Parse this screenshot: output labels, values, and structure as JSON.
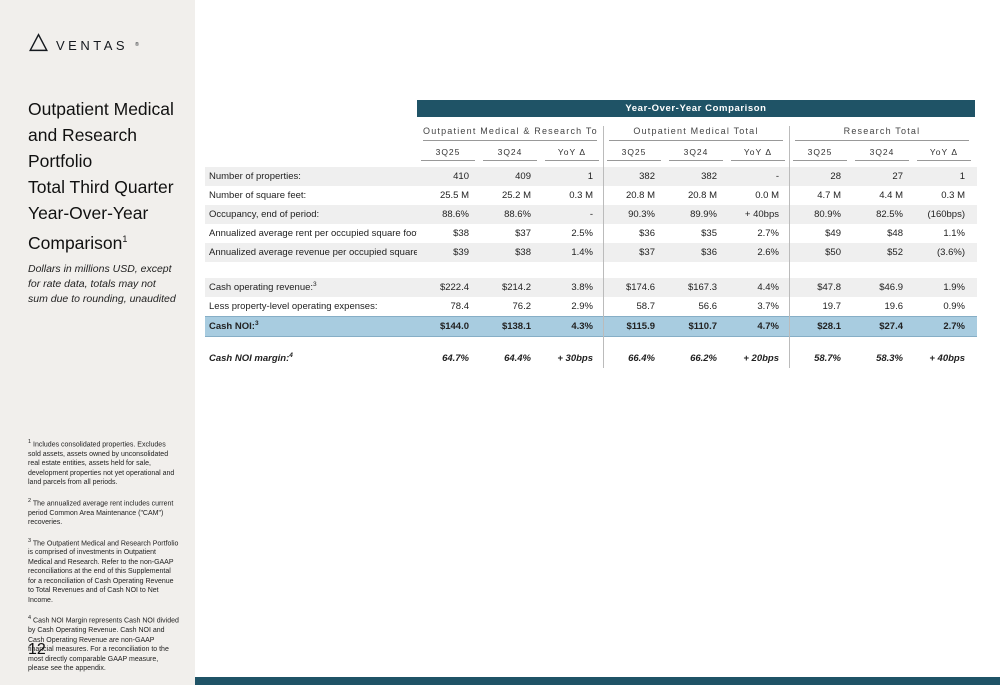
{
  "colors": {
    "banner": "#1f5366",
    "highlight": "#a8cce0",
    "stripe": "#efefef",
    "sidebar_bg": "#f1efec",
    "text": "#1a1a1a",
    "rule": "#999999"
  },
  "brand": {
    "logo_text": "VENTAS",
    "logo_reg": "®",
    "logo_mark_icon": "triangle-outline"
  },
  "sidebar": {
    "title_lines": [
      "Outpatient Medical",
      "and Research",
      "Portfolio",
      "Total Third Quarter",
      "Year-Over-Year",
      "Comparison"
    ],
    "title_sup": "1",
    "note": "Dollars in millions USD, except for rate data, totals may not sum due to rounding, unaudited",
    "footnotes": [
      {
        "num": "1",
        "text": "Includes consolidated properties. Excludes sold assets, assets owned by unconsolidated real estate entities, assets held for sale, development properties not yet operational and land parcels from all periods."
      },
      {
        "num": "2",
        "text": "The annualized average rent includes current period Common Area Maintenance (\"CAM\") recoveries."
      },
      {
        "num": "3",
        "text": "The Outpatient Medical and Research Portfolio is comprised of investments in Outpatient Medical and Research. Refer to the non-GAAP reconciliations at the end of this Supplemental for a reconciliation of Cash Operating Revenue to Total Revenues and of Cash NOI to Net Income."
      },
      {
        "num": "4",
        "text": "Cash NOI Margin represents Cash NOI divided by Cash Operating Revenue. Cash NOI and Cash Operating Revenue are non-GAAP financial measures. For a reconciliation to the most directly comparable GAAP measure, please see the appendix."
      }
    ],
    "page_number": "12"
  },
  "table": {
    "banner": "Year-Over-Year Comparison",
    "groups": [
      {
        "label": "Outpatient Medical & Research Total",
        "columns": [
          "3Q25",
          "3Q24",
          "YoY Δ"
        ]
      },
      {
        "label": "Outpatient Medical Total",
        "columns": [
          "3Q25",
          "3Q24",
          "YoY Δ"
        ]
      },
      {
        "label": "Research Total",
        "columns": [
          "3Q25",
          "3Q24",
          "YoY Δ"
        ]
      }
    ],
    "rows": [
      {
        "label": "Number of properties:",
        "sup": "",
        "stripe": true,
        "values": [
          "410",
          "409",
          "1",
          "382",
          "382",
          "-",
          "28",
          "27",
          "1"
        ]
      },
      {
        "label": "Number of square feet:",
        "sup": "",
        "stripe": false,
        "values": [
          "25.5 M",
          "25.2 M",
          "0.3 M",
          "20.8 M",
          "20.8 M",
          "0.0 M",
          "4.7 M",
          "4.4 M",
          "0.3 M"
        ]
      },
      {
        "label": "Occupancy, end of period:",
        "sup": "",
        "stripe": true,
        "values": [
          "88.6%",
          "88.6%",
          "-",
          "90.3%",
          "89.9%",
          "+ 40bps",
          "80.9%",
          "82.5%",
          "(160bps)"
        ]
      },
      {
        "label": "Annualized average rent per occupied square foot:",
        "sup": "2",
        "stripe": false,
        "values": [
          "$38",
          "$37",
          "2.5%",
          "$36",
          "$35",
          "2.7%",
          "$49",
          "$48",
          "1.1%"
        ]
      },
      {
        "label": "Annualized average revenue per occupied square foot:",
        "sup": "",
        "stripe": true,
        "values": [
          "$39",
          "$38",
          "1.4%",
          "$37",
          "$36",
          "2.6%",
          "$50",
          "$52",
          "(3.6%)"
        ]
      },
      {
        "type": "spacer",
        "height": 16
      },
      {
        "label": "Cash operating revenue:",
        "sup": "3",
        "stripe": true,
        "values": [
          "$222.4",
          "$214.2",
          "3.8%",
          "$174.6",
          "$167.3",
          "4.4%",
          "$47.8",
          "$46.9",
          "1.9%"
        ]
      },
      {
        "label": "Less property-level operating expenses:",
        "sup": "",
        "stripe": false,
        "values": [
          "78.4",
          "76.2",
          "2.9%",
          "58.7",
          "56.6",
          "3.7%",
          "19.7",
          "19.6",
          "0.9%"
        ]
      },
      {
        "label": "Cash NOI:",
        "sup": "3",
        "highlight": true,
        "bold": true,
        "values": [
          "$144.0",
          "$138.1",
          "4.3%",
          "$115.9",
          "$110.7",
          "4.7%",
          "$28.1",
          "$27.4",
          "2.7%"
        ]
      },
      {
        "type": "spacer",
        "height": 12
      },
      {
        "label": "Cash NOI margin:",
        "sup": "4",
        "italic": true,
        "bold": true,
        "values": [
          "64.7%",
          "64.4%",
          "+ 30bps",
          "66.4%",
          "66.2%",
          "+ 20bps",
          "58.7%",
          "58.3%",
          "+ 40bps"
        ]
      }
    ]
  }
}
